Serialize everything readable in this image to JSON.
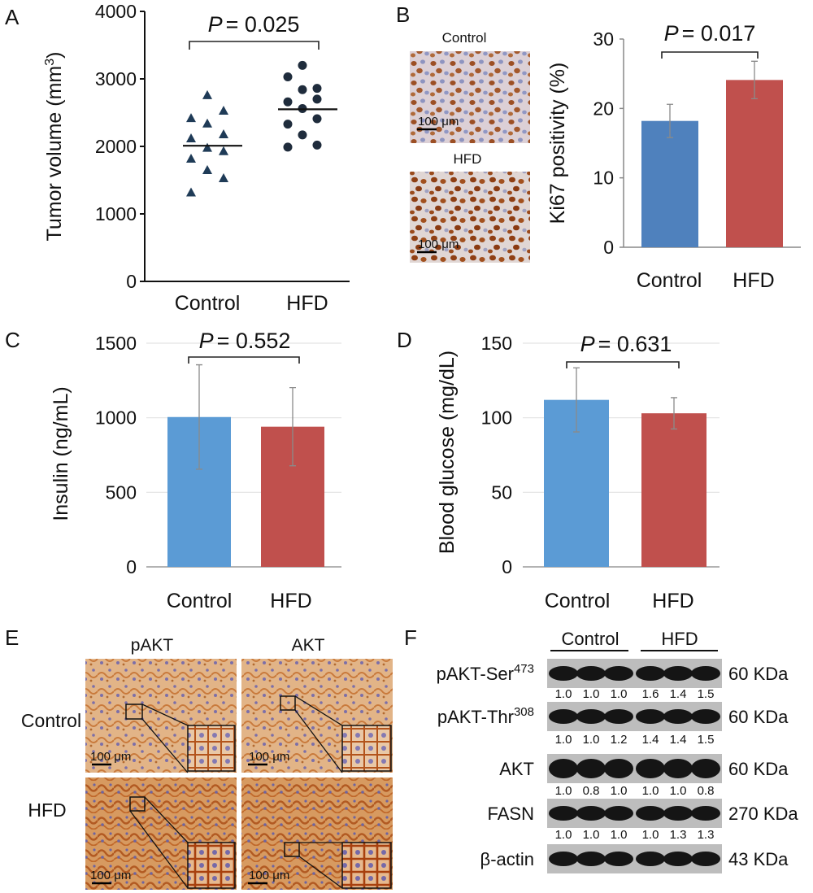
{
  "panels": {
    "A": "A",
    "B": "B",
    "C": "C",
    "D": "D",
    "E": "E",
    "F": "F"
  },
  "chart_data": [
    {
      "panel": "A",
      "type": "scatter",
      "ylabel_main": "Tumor volume (mm",
      "ylabel_sup": "3",
      "ylabel_end": ")",
      "ylim": [
        0,
        4000
      ],
      "yticks": [
        "0",
        "1000",
        "2000",
        "3000",
        "4000"
      ],
      "categories": [
        "Control",
        "HFD"
      ],
      "p_value_italic": "P",
      "p_value_text": "= 0.025",
      "series": [
        {
          "name": "Control",
          "marker": "triangle",
          "color": "#1f3b57",
          "values": [
            2760,
            2530,
            2420,
            2340,
            2180,
            2120,
            1980,
            1930,
            1820,
            1650,
            1530,
            1320
          ],
          "mean": 2010
        },
        {
          "name": "HFD",
          "marker": "circle",
          "color": "#1f2c3c",
          "values": [
            3200,
            3030,
            2860,
            2840,
            2700,
            2660,
            2560,
            2410,
            2330,
            2170,
            2020,
            1990
          ],
          "mean": 2550
        }
      ]
    },
    {
      "panel": "B",
      "type": "bar",
      "ylabel": "Ki67 positivity (%)",
      "ylim": [
        0,
        30
      ],
      "yticks": [
        "0",
        "10",
        "20",
        "30"
      ],
      "categories": [
        "Control",
        "HFD"
      ],
      "values": [
        18.2,
        24.1
      ],
      "errors": [
        2.4,
        2.7
      ],
      "colors": [
        "#4f81bd",
        "#c0504d"
      ],
      "p_value_italic": "P",
      "p_value_text": "= 0.017",
      "micrographs": [
        {
          "label": "Control",
          "scale": "100 μm"
        },
        {
          "label": "HFD",
          "scale": "100 μm"
        }
      ]
    },
    {
      "panel": "C",
      "type": "bar",
      "ylabel": "Insulin (ng/mL)",
      "ylim": [
        0,
        1500
      ],
      "yticks": [
        "0",
        "500",
        "1000",
        "1500"
      ],
      "categories": [
        "Control",
        "HFD"
      ],
      "values": [
        1005,
        940
      ],
      "errors": [
        350,
        262
      ],
      "colors": [
        "#5b9bd5",
        "#c0504d"
      ],
      "grid": true,
      "p_value_italic": "P",
      "p_value_text": "= 0.552"
    },
    {
      "panel": "D",
      "type": "bar",
      "ylabel": "Blood glucose (mg/dL)",
      "ylim": [
        0,
        150
      ],
      "yticks": [
        "0",
        "50",
        "100",
        "150"
      ],
      "categories": [
        "Control",
        "HFD"
      ],
      "values": [
        112,
        103
      ],
      "errors": [
        21.5,
        10.5
      ],
      "colors": [
        "#5b9bd5",
        "#c0504d"
      ],
      "grid": true,
      "p_value_italic": "P",
      "p_value_text": "= 0.631"
    }
  ],
  "ihc": {
    "columns": [
      "pAKT",
      "AKT"
    ],
    "rows": [
      "Control",
      "HFD"
    ],
    "scale": "100 μm"
  },
  "western": {
    "groups": [
      "Control",
      "HFD"
    ],
    "rows": [
      {
        "label": "pAKT-Ser",
        "sup": "473",
        "ratios": [
          "1.0",
          "1.0",
          "1.0",
          "1.6",
          "1.4",
          "1.5"
        ],
        "kda": "60 KDa"
      },
      {
        "label": "pAKT-Thr",
        "sup": "308",
        "ratios": [
          "1.0",
          "1.0",
          "1.2",
          "1.4",
          "1.4",
          "1.5"
        ],
        "kda": "60 KDa"
      },
      {
        "label": "AKT",
        "sup": "",
        "ratios": [
          "1.0",
          "0.8",
          "1.0",
          "1.0",
          "1.0",
          "0.8"
        ],
        "kda": "60 KDa"
      },
      {
        "label": "FASN",
        "sup": "",
        "ratios": [
          "1.0",
          "1.0",
          "1.0",
          "1.0",
          "1.3",
          "1.3"
        ],
        "kda": "270 KDa"
      },
      {
        "label": "β-actin",
        "sup": "",
        "ratios": [],
        "kda": "43 KDa"
      }
    ]
  }
}
